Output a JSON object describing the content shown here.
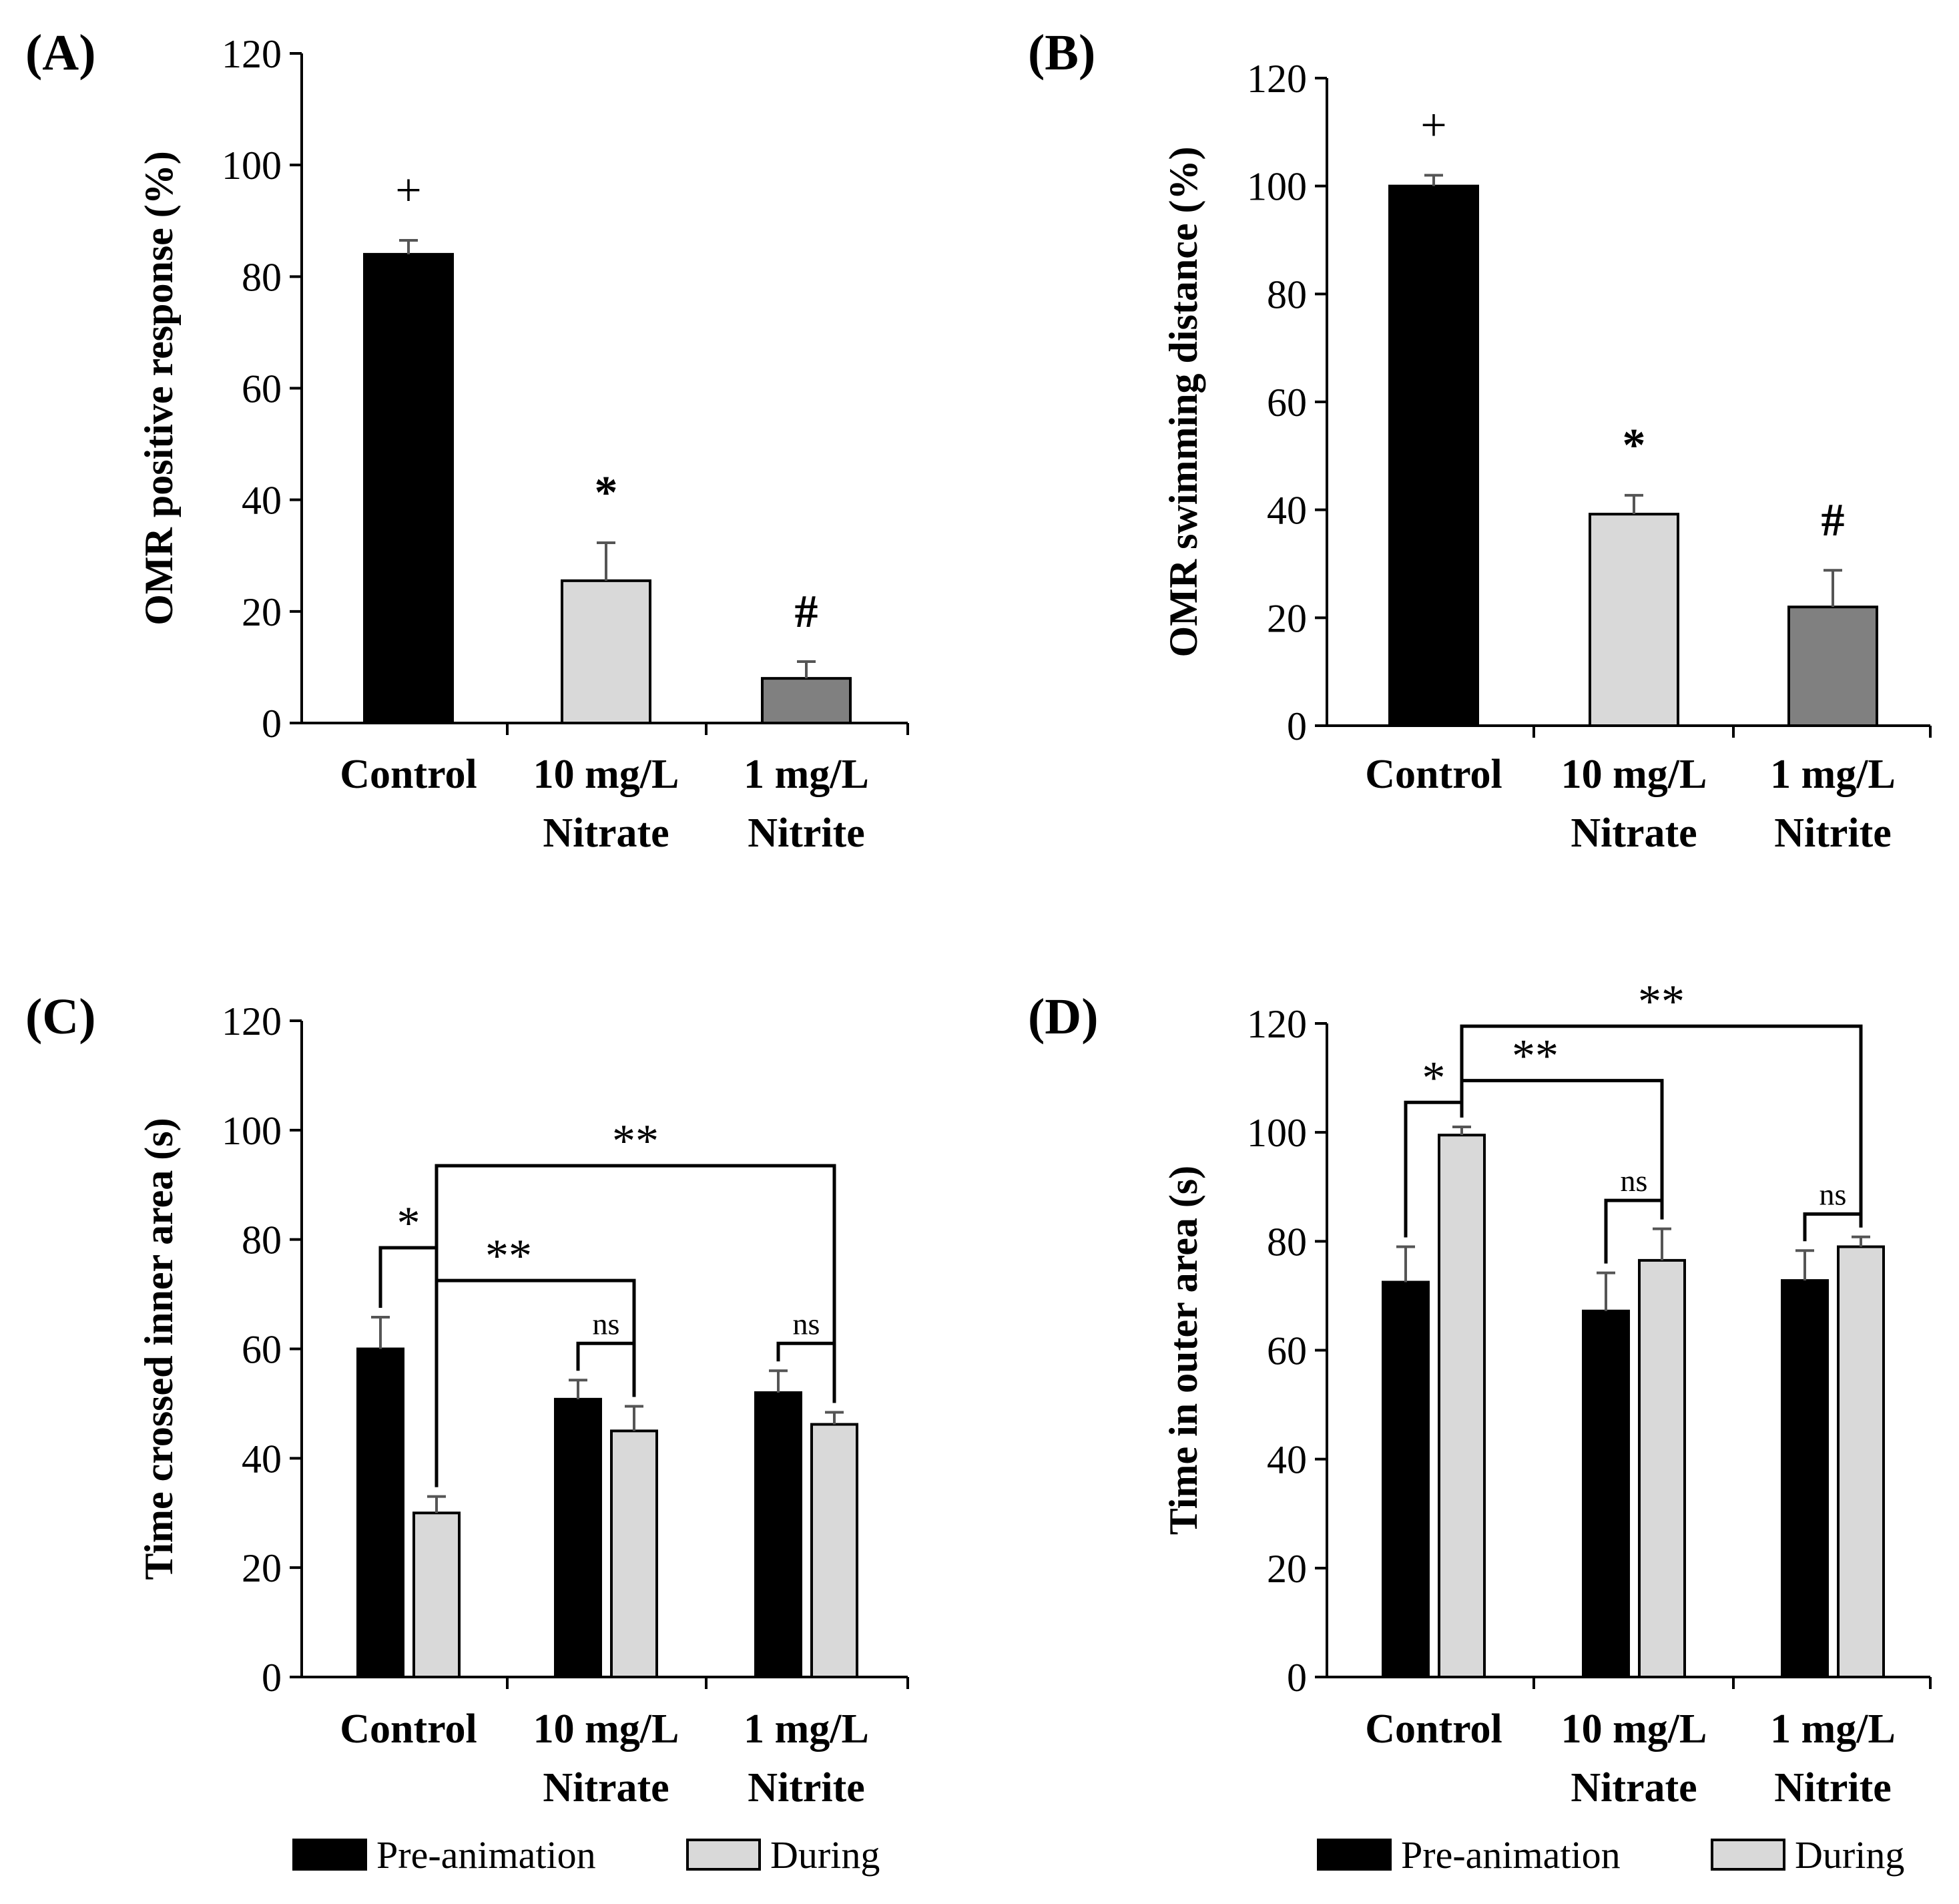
{
  "colors": {
    "control": "#000000",
    "nitrate": "#d9d9d9",
    "nitrite": "#808080",
    "pre_animation": "#000000",
    "during": "#d9d9d9",
    "axis": "#000000",
    "errorbar": "#555555"
  },
  "chart_data": [
    {
      "id": "A",
      "panel_label": "(A)",
      "type": "bar",
      "ylabel": "OMR positive response (%)",
      "ylim": [
        0,
        120
      ],
      "yticks": [
        0,
        20,
        40,
        60,
        80,
        100,
        120
      ],
      "categories": [
        {
          "line1": "Control",
          "line2": ""
        },
        {
          "line1": "10 mg/L",
          "line2": "Nitrate"
        },
        {
          "line1": "1 mg/L",
          "line2": "Nitrite"
        }
      ],
      "values": [
        84,
        25.5,
        8
      ],
      "errors": [
        2.5,
        6.8,
        3
      ],
      "bar_colors": [
        "#000000",
        "#d9d9d9",
        "#808080"
      ],
      "markers": [
        "+",
        "*",
        "#"
      ]
    },
    {
      "id": "B",
      "panel_label": "(B)",
      "type": "bar",
      "ylabel": "OMR swimming distance (%)",
      "ylim": [
        0,
        120
      ],
      "yticks": [
        0,
        20,
        40,
        60,
        80,
        100,
        120
      ],
      "categories": [
        {
          "line1": "Control",
          "line2": ""
        },
        {
          "line1": "10 mg/L",
          "line2": "Nitrate"
        },
        {
          "line1": "1 mg/L",
          "line2": "Nitrite"
        }
      ],
      "values": [
        100,
        39.2,
        22
      ],
      "errors": [
        2,
        3.5,
        6.8
      ],
      "bar_colors": [
        "#000000",
        "#d9d9d9",
        "#808080"
      ],
      "markers": [
        "+",
        "*",
        "#"
      ]
    },
    {
      "id": "C",
      "panel_label": "(C)",
      "type": "bar",
      "ylabel": "Time crossed inner area (s)",
      "ylim": [
        0,
        120
      ],
      "yticks": [
        0,
        20,
        40,
        60,
        80,
        100,
        120
      ],
      "categories": [
        {
          "line1": "Control",
          "line2": ""
        },
        {
          "line1": "10 mg/L",
          "line2": "Nitrate"
        },
        {
          "line1": "1 mg/L",
          "line2": "Nitrite"
        }
      ],
      "series": [
        {
          "name": "Pre-animation",
          "values": [
            60,
            50.8,
            52
          ],
          "errors": [
            5.8,
            3.5,
            4
          ]
        },
        {
          "name": "During",
          "values": [
            30,
            45,
            46.2
          ],
          "errors": [
            3,
            4.5,
            2.2
          ]
        }
      ],
      "within_brackets": [
        {
          "group": 0,
          "label": "*",
          "top": 78.5
        },
        {
          "group": 1,
          "label": "ns",
          "top": 61
        },
        {
          "group": 2,
          "label": "ns",
          "top": 61
        }
      ],
      "between_brackets": [
        {
          "from_group": 0,
          "to_group": 1,
          "label": "**",
          "top": 72.5
        },
        {
          "from_group": 0,
          "to_group": 2,
          "label": "**",
          "top": 93.5
        }
      ]
    },
    {
      "id": "D",
      "panel_label": "(D)",
      "type": "bar",
      "ylabel": "Time in outer area (s)",
      "ylim": [
        0,
        120
      ],
      "yticks": [
        0,
        20,
        40,
        60,
        80,
        100,
        120
      ],
      "categories": [
        {
          "line1": "Control",
          "line2": ""
        },
        {
          "line1": "10 mg/L",
          "line2": "Nitrate"
        },
        {
          "line1": "1 mg/L",
          "line2": "Nitrite"
        }
      ],
      "series": [
        {
          "name": "Pre-animation",
          "values": [
            72.5,
            67.2,
            72.8
          ],
          "errors": [
            6.5,
            7,
            5.5
          ]
        },
        {
          "name": "During",
          "values": [
            99.5,
            76.5,
            79
          ],
          "errors": [
            1.5,
            5.8,
            1.8
          ]
        }
      ],
      "within_brackets": [
        {
          "group": 0,
          "label": "*",
          "top": 105.5
        },
        {
          "group": 1,
          "label": "ns",
          "top": 87.5
        },
        {
          "group": 2,
          "label": "ns",
          "top": 85
        }
      ],
      "between_brackets": [
        {
          "from_group": 0,
          "to_group": 1,
          "label": "**",
          "top": 109.5
        },
        {
          "from_group": 0,
          "to_group": 2,
          "label": "**",
          "top": 119.5
        }
      ]
    }
  ],
  "legend": {
    "items": [
      {
        "label": "Pre-animation",
        "color": "#000000"
      },
      {
        "label": "During",
        "color": "#d9d9d9"
      }
    ]
  }
}
